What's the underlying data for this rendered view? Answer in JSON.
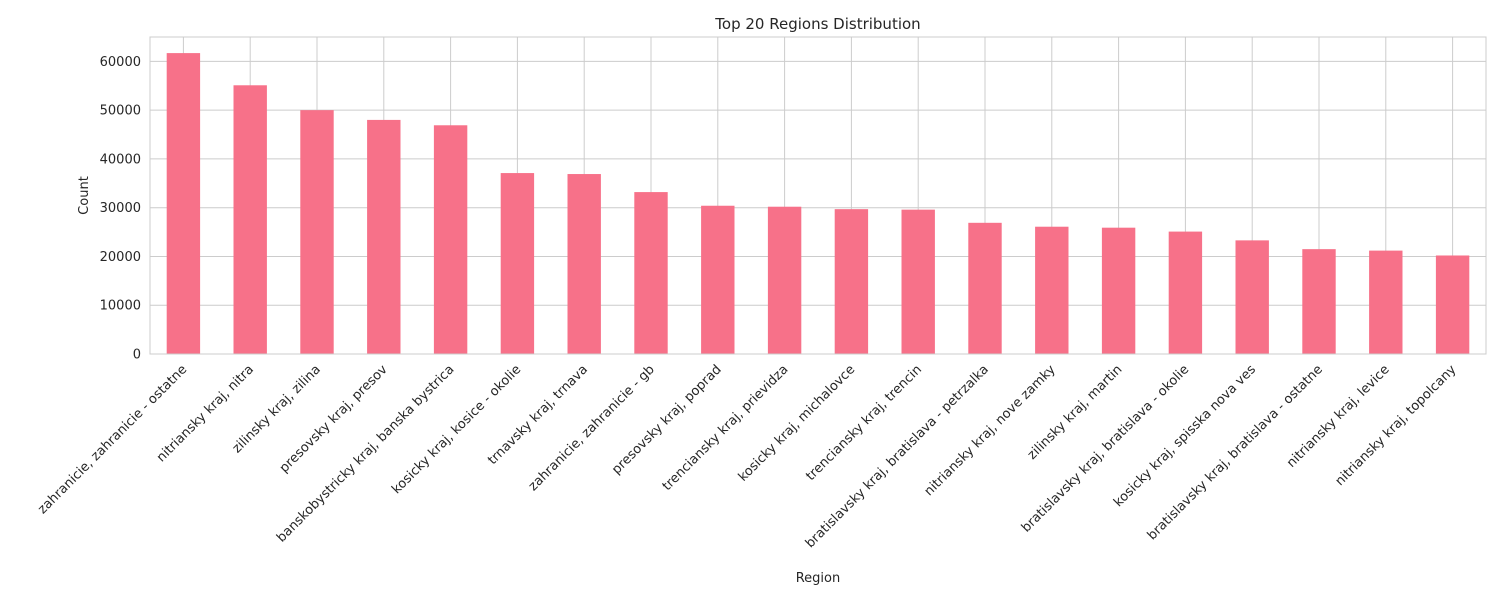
{
  "chart_data": {
    "type": "bar",
    "title": "Top 20 Regions Distribution",
    "xlabel": "Region",
    "ylabel": "Count",
    "ylim": [
      0,
      65000
    ],
    "yticks": [
      0,
      10000,
      20000,
      30000,
      40000,
      50000,
      60000
    ],
    "ytick_labels": [
      "0",
      "10000",
      "20000",
      "30000",
      "40000",
      "50000",
      "60000"
    ],
    "grid": true,
    "bar_color": "#f77189",
    "grid_color": "#cccccc",
    "categories": [
      "zahranicie, zahranicie - ostatne",
      "nitriansky kraj, nitra",
      "zilinsky kraj, zilina",
      "presovsky kraj, presov",
      "banskobystricky kraj, banska bystrica",
      "kosicky kraj, kosice - okolie",
      "trnavsky kraj, trnava",
      "zahranicie, zahranicie - gb",
      "presovsky kraj, poprad",
      "trenciansky kraj, prievidza",
      "kosicky kraj, michalovce",
      "trenciansky kraj, trencin",
      "bratislavsky kraj, bratislava - petrzalka",
      "nitriansky kraj, nove zamky",
      "zilinsky kraj, martin",
      "bratislavsky kraj, bratislava - okolie",
      "kosicky kraj, spisska nova ves",
      "bratislavsky kraj, bratislava - ostatne",
      "nitriansky kraj, levice",
      "nitriansky kraj, topolcany"
    ],
    "values": [
      61700,
      55100,
      50000,
      48000,
      46900,
      37100,
      36900,
      33200,
      30400,
      30200,
      29700,
      29600,
      26900,
      26100,
      25900,
      25100,
      23300,
      21500,
      21200,
      20200
    ]
  }
}
